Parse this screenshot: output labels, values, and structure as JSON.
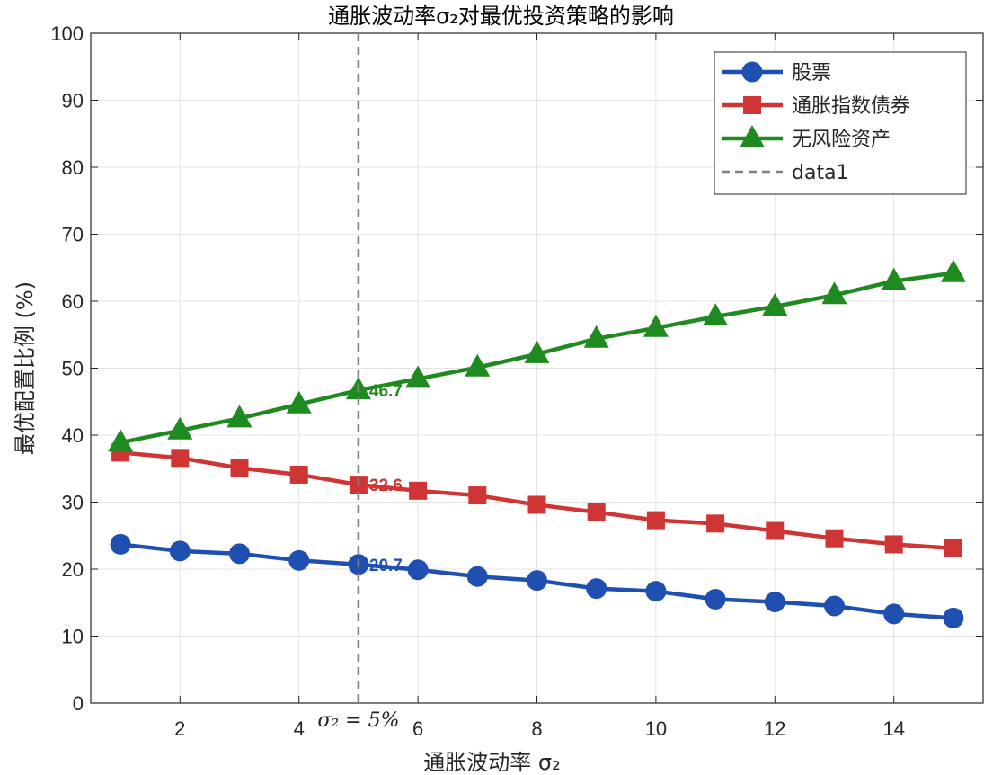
{
  "chart_data": {
    "type": "line",
    "title": "通胀波动率σ₂对最优投资策略的影响",
    "xlabel": "通胀波动率 σ₂",
    "ylabel": "最优配置比例 (%)",
    "xlim": [
      0.5,
      15.5
    ],
    "ylim": [
      0,
      100
    ],
    "xticks": [
      2,
      4,
      6,
      8,
      10,
      12,
      14
    ],
    "yticks": [
      0,
      10,
      20,
      30,
      40,
      50,
      60,
      70,
      80,
      90,
      100
    ],
    "grid": true,
    "legend_position": "top-right",
    "x": [
      1,
      2,
      3,
      4,
      5,
      6,
      7,
      8,
      9,
      10,
      11,
      12,
      13,
      14,
      15
    ],
    "series": [
      {
        "name": "股票",
        "color": "#1f4fb0",
        "marker": "circle",
        "values": [
          23.7,
          22.7,
          22.3,
          21.3,
          20.7,
          19.9,
          18.9,
          18.3,
          17.1,
          16.7,
          15.5,
          15.1,
          14.5,
          13.3,
          12.7
        ]
      },
      {
        "name": "通胀指数债券",
        "color": "#d03535",
        "marker": "square",
        "values": [
          37.4,
          36.6,
          35.1,
          34.1,
          32.6,
          31.7,
          31.0,
          29.6,
          28.5,
          27.3,
          26.8,
          25.7,
          24.6,
          23.7,
          23.1
        ]
      },
      {
        "name": "无风险资产",
        "color": "#1f8a1f",
        "marker": "triangle",
        "values": [
          38.9,
          40.7,
          42.5,
          44.6,
          46.7,
          48.4,
          50.1,
          52.1,
          54.4,
          56.0,
          57.7,
          59.2,
          60.9,
          63.0,
          64.2
        ]
      },
      {
        "name": "data1",
        "color": "#808080",
        "style": "dashed-vertical",
        "x_value": 5
      }
    ],
    "data_labels": [
      {
        "series": "股票",
        "x": 5,
        "text": "20.7"
      },
      {
        "series": "通胀指数债券",
        "x": 5,
        "text": "32.6"
      },
      {
        "series": "无风险资产",
        "x": 5,
        "text": "46.7"
      }
    ],
    "annotation": {
      "x": 5,
      "text": "σ₂ = 5%"
    }
  }
}
